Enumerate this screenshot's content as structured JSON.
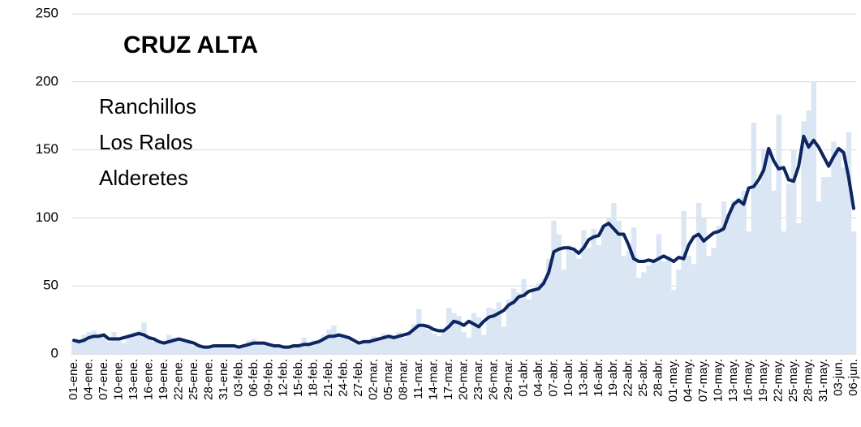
{
  "chart_data": {
    "type": "combo",
    "title": "CRUZ ALTA",
    "annotations": [
      "Ranchillos",
      "Los Ralos",
      "Alderetes"
    ],
    "categories": [
      "01-ene.",
      null,
      null,
      "04-ene.",
      null,
      null,
      "07-ene.",
      null,
      null,
      "10-ene.",
      null,
      null,
      "13-ene.",
      null,
      null,
      "16-ene.",
      null,
      null,
      "19-ene.",
      null,
      null,
      "22-ene.",
      null,
      null,
      "25-ene.",
      null,
      null,
      "28-ene.",
      null,
      null,
      "31-ene.",
      null,
      null,
      "03-feb.",
      null,
      null,
      "06-feb.",
      null,
      null,
      "09-feb.",
      null,
      null,
      "12-feb.",
      null,
      null,
      "15-feb.",
      null,
      null,
      "18-feb.",
      null,
      null,
      "21-feb.",
      null,
      null,
      "24-feb.",
      null,
      null,
      "27-feb.",
      null,
      null,
      "02-mar.",
      null,
      null,
      "05-mar.",
      null,
      null,
      "08-mar.",
      null,
      null,
      "11-mar.",
      null,
      null,
      "14-mar.",
      null,
      null,
      "17-mar.",
      null,
      null,
      "20-mar.",
      null,
      null,
      "23-mar.",
      null,
      null,
      "26-mar.",
      null,
      null,
      "29-mar.",
      null,
      null,
      "01-abr.",
      null,
      null,
      "04-abr.",
      null,
      null,
      "07-abr.",
      null,
      null,
      "10-abr.",
      null,
      null,
      "13-abr.",
      null,
      null,
      "16-abr.",
      null,
      null,
      "19-abr.",
      null,
      null,
      "22-abr.",
      null,
      null,
      "25-abr.",
      null,
      null,
      "28-abr.",
      null,
      null,
      "01-may.",
      null,
      null,
      "04-may.",
      null,
      null,
      "07-may.",
      null,
      null,
      "10-may.",
      null,
      null,
      "13-may.",
      null,
      null,
      "16-may.",
      null,
      null,
      "19-may.",
      null,
      null,
      "22-may.",
      null,
      null,
      "25-may.",
      null,
      null,
      "28-may.",
      null,
      null,
      "31-may.",
      null,
      null,
      "03-jun.",
      null,
      null,
      "06-jun."
    ],
    "series": [
      {
        "type": "bar",
        "color": "#dae6f3",
        "values": [
          11,
          8,
          14,
          16,
          17,
          15,
          13,
          9,
          16,
          12,
          8,
          14,
          16,
          17,
          23,
          11,
          9,
          7,
          8,
          14,
          12,
          10,
          9,
          8,
          6,
          5,
          5,
          4,
          6,
          7,
          6,
          5,
          7,
          6,
          5,
          10,
          11,
          9,
          8,
          7,
          6,
          5,
          4,
          6,
          7,
          5,
          12,
          8,
          10,
          9,
          14,
          18,
          21,
          14,
          12,
          11,
          8,
          7,
          9,
          8,
          13,
          10,
          15,
          14,
          11,
          16,
          12,
          16,
          22,
          33,
          22,
          18,
          15,
          13,
          16,
          34,
          30,
          28,
          16,
          12,
          30,
          27,
          14,
          34,
          33,
          38,
          20,
          40,
          48,
          45,
          55,
          40,
          48,
          52,
          55,
          70,
          98,
          88,
          62,
          80,
          75,
          70,
          91,
          78,
          92,
          80,
          95,
          100,
          111,
          98,
          72,
          76,
          93,
          56,
          60,
          65,
          70,
          88,
          68,
          72,
          47,
          62,
          105,
          72,
          66,
          111,
          100,
          72,
          78,
          94,
          112,
          103,
          113,
          115,
          120,
          90,
          170,
          125,
          151,
          150,
          120,
          176,
          90,
          125,
          150,
          96,
          171,
          179,
          200,
          112,
          130,
          130,
          156,
          150,
          137,
          163,
          90
        ]
      },
      {
        "type": "line",
        "color": "#0d2560",
        "values": [
          10,
          9,
          10,
          12,
          13,
          13,
          14,
          11,
          11,
          11,
          12,
          13,
          14,
          15,
          14,
          12,
          11,
          9,
          8,
          9,
          10,
          11,
          10,
          9,
          8,
          6,
          5,
          5,
          6,
          6,
          6,
          6,
          6,
          5,
          6,
          7,
          8,
          8,
          8,
          7,
          6,
          6,
          5,
          5,
          6,
          6,
          7,
          7,
          8,
          9,
          11,
          13,
          13,
          14,
          13,
          12,
          10,
          8,
          9,
          9,
          10,
          11,
          12,
          13,
          12,
          13,
          14,
          15,
          18,
          21,
          21,
          20,
          18,
          17,
          17,
          20,
          24,
          23,
          21,
          24,
          22,
          20,
          24,
          27,
          28,
          30,
          32,
          36,
          38,
          42,
          43,
          46,
          47,
          48,
          52,
          60,
          75,
          77,
          78,
          78,
          77,
          74,
          78,
          84,
          86,
          87,
          94,
          96,
          92,
          88,
          88,
          80,
          70,
          68,
          68,
          69,
          68,
          70,
          72,
          70,
          68,
          71,
          70,
          80,
          86,
          88,
          83,
          86,
          89,
          90,
          92,
          102,
          110,
          113,
          110,
          122,
          123,
          128,
          135,
          151,
          142,
          136,
          137,
          128,
          127,
          138,
          160,
          152,
          157,
          152,
          145,
          138,
          145,
          151,
          148,
          130,
          107
        ]
      }
    ],
    "ylim": [
      0,
      250
    ],
    "yticks": [
      0,
      50,
      100,
      150,
      200,
      250
    ],
    "grid": true
  }
}
